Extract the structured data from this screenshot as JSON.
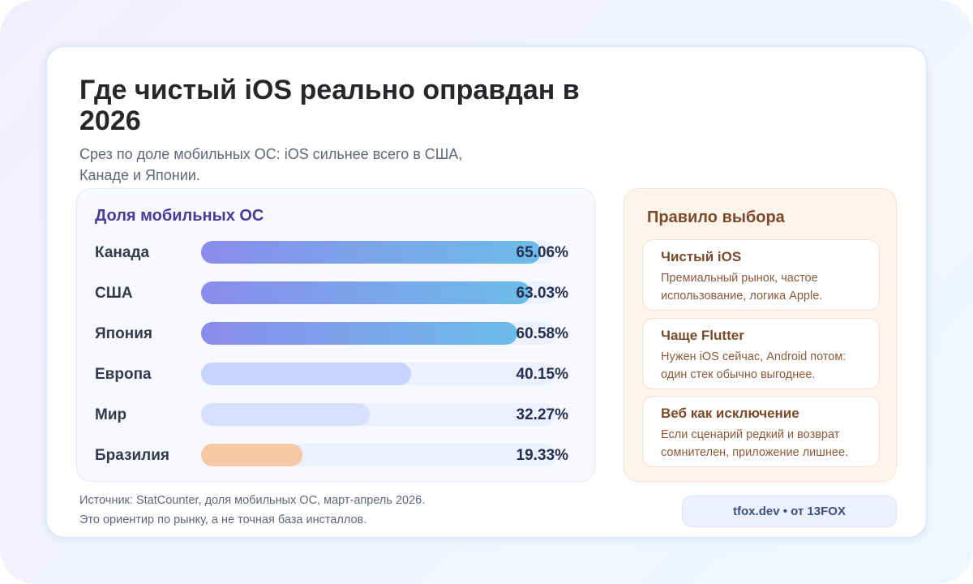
{
  "header": {
    "title": "Где чистый iOS реально оправдан в 2026",
    "subtitle": "Срез по доле мобильных ОС: iOS сильнее всего в США, Канаде и Японии."
  },
  "chart": {
    "title": "Доля мобильных ОС",
    "rows": [
      {
        "label": "Канада",
        "value": 65.06,
        "value_label": "65.06%",
        "style": "gradient"
      },
      {
        "label": "США",
        "value": 63.03,
        "value_label": "63.03%",
        "style": "gradient"
      },
      {
        "label": "Япония",
        "value": 60.58,
        "value_label": "60.58%",
        "style": "gradient"
      },
      {
        "label": "Европа",
        "value": 40.15,
        "value_label": "40.15%",
        "style": "light-blue"
      },
      {
        "label": "Мир",
        "value": 32.27,
        "value_label": "32.27%",
        "style": "pale-blue"
      },
      {
        "label": "Бразилия",
        "value": 19.33,
        "value_label": "19.33%",
        "style": "peach"
      }
    ],
    "colors": {
      "gradient_start": "#8a8cec",
      "gradient_end": "#6cbcea",
      "light-blue": "#c4d4fd",
      "pale-blue": "#d7e0fd",
      "peach": "#f6c8a6",
      "track": "#edf1fd"
    }
  },
  "chart_data": {
    "type": "bar",
    "orientation": "horizontal",
    "title": "Доля мобильных ОС",
    "categories": [
      "Канада",
      "США",
      "Япония",
      "Европа",
      "Мир",
      "Бразилия"
    ],
    "values": [
      65.06,
      63.03,
      60.58,
      40.15,
      32.27,
      19.33
    ],
    "unit": "%",
    "xlabel": "",
    "ylabel": "",
    "xlim": [
      0,
      68
    ],
    "grid": false,
    "legend": null,
    "data_labels": [
      "65.06%",
      "63.03%",
      "60.58%",
      "40.15%",
      "32.27%",
      "19.33%"
    ]
  },
  "rules": {
    "title": "Правило выбора",
    "items": [
      {
        "title": "Чистый iOS",
        "text_line1": "Премиальный рынок, частое",
        "text_line2": "использование, логика Apple."
      },
      {
        "title": "Чаще Flutter",
        "text_line1": "Нужен iOS сейчас, Android потом:",
        "text_line2": "один стек обычно выгоднее."
      },
      {
        "title": "Веб как исключение",
        "text_line1": "Если сценарий редкий и возврат",
        "text_line2": "сомнителен, приложение лишнее."
      }
    ]
  },
  "footer": {
    "source_line1": "Источник: StatCounter, доля мобильных ОС, март-апрель 2026.",
    "source_line2": "Это ориентир по рынку, а не точная база инсталлов.",
    "credit": "tfox.dev • от 13FOX"
  }
}
